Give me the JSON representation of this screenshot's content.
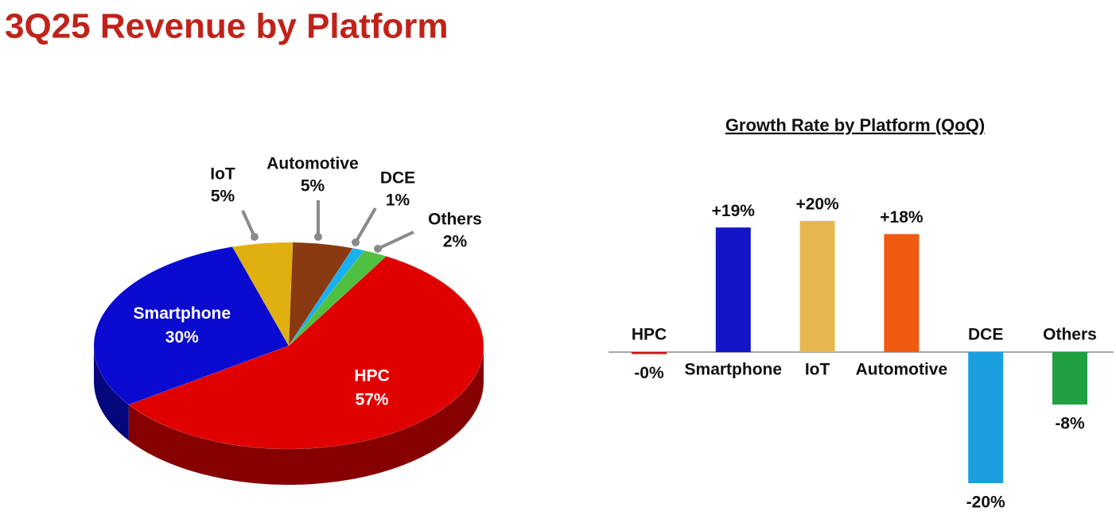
{
  "title": "3Q25 Revenue by Platform",
  "chart_data": [
    {
      "type": "pie",
      "categories": [
        "HPC",
        "Smartphone",
        "IoT",
        "Automotive",
        "DCE",
        "Others"
      ],
      "values": [
        57,
        30,
        5,
        5,
        1,
        2
      ],
      "value_labels": [
        "57%",
        "30%",
        "5%",
        "5%",
        "1%",
        "2%"
      ],
      "colors": [
        "#e00000",
        "#0a0ad0",
        "#e0b010",
        "#8a3a10",
        "#18b0f0",
        "#50c040"
      ]
    },
    {
      "type": "bar",
      "title": "Growth Rate by Platform (QoQ)",
      "categories": [
        "HPC",
        "Smartphone",
        "IoT",
        "Automotive",
        "DCE",
        "Others"
      ],
      "values": [
        -0.3,
        19,
        20,
        18,
        -20,
        -8
      ],
      "value_labels": [
        "-0%",
        "+19%",
        "+20%",
        "+18%",
        "-20%",
        "-8%"
      ],
      "colors": [
        "#d01010",
        "#1414c8",
        "#e8b850",
        "#f05a10",
        "#1aa0e0",
        "#20a040"
      ]
    }
  ]
}
